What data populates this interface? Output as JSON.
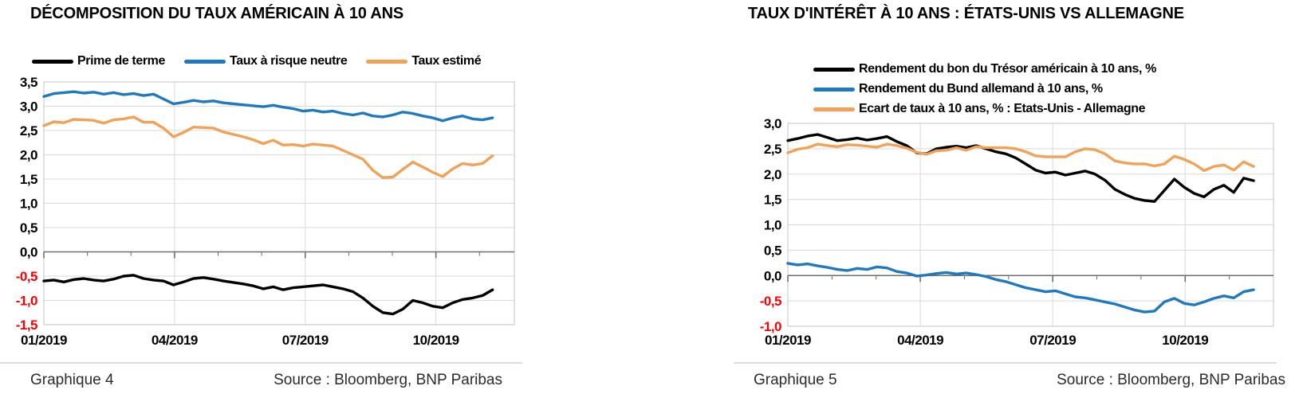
{
  "chart_data": [
    {
      "type": "line",
      "title": "DÉCOMPOSITION DU TAUX AMÉRICAIN À 10 ANS",
      "caption": "Graphique 4",
      "source": "Source : Bloomberg, BNP Paribas",
      "legend_position": "top-horizontal",
      "grid": true,
      "ylim": [
        -1.5,
        3.5
      ],
      "x_axis": {
        "tick_labels": [
          "01/2019",
          "04/2019",
          "07/2019",
          "10/2019"
        ],
        "tick_months": [
          0,
          3,
          6,
          9
        ],
        "gridline_months": [
          3,
          6,
          9
        ],
        "minor_tick_months": [
          0,
          1,
          2,
          3,
          4,
          5,
          6,
          7,
          8,
          9,
          10
        ],
        "months_max": 10.8,
        "data_months": 10.3
      },
      "y_axis": {
        "tick_labels": [
          "3,5",
          "3,0",
          "2,5",
          "2,0",
          "1,5",
          "1,0",
          "0,5",
          "0,0",
          "-0,5",
          "-1,0",
          "-1,5"
        ],
        "tick_values": [
          3.5,
          3.0,
          2.5,
          2.0,
          1.5,
          1.0,
          0.5,
          0.0,
          -0.5,
          -1.0,
          -1.5
        ],
        "negative_label_color": "#ff0000"
      },
      "series": [
        {
          "name": "Prime de terme",
          "color": "#000000",
          "values": [
            -0.6,
            -0.58,
            -0.62,
            -0.57,
            -0.55,
            -0.58,
            -0.6,
            -0.56,
            -0.5,
            -0.48,
            -0.55,
            -0.58,
            -0.6,
            -0.68,
            -0.62,
            -0.55,
            -0.53,
            -0.56,
            -0.6,
            -0.63,
            -0.66,
            -0.7,
            -0.76,
            -0.72,
            -0.78,
            -0.74,
            -0.72,
            -0.7,
            -0.68,
            -0.72,
            -0.76,
            -0.82,
            -0.95,
            -1.12,
            -1.25,
            -1.28,
            -1.18,
            -1.0,
            -1.05,
            -1.12,
            -1.15,
            -1.05,
            -0.98,
            -0.95,
            -0.9,
            -0.78
          ]
        },
        {
          "name": "Taux à risque neutre",
          "color": "#1e78c2",
          "values": [
            3.2,
            3.26,
            3.28,
            3.3,
            3.27,
            3.29,
            3.25,
            3.28,
            3.24,
            3.26,
            3.22,
            3.25,
            3.15,
            3.05,
            3.08,
            3.12,
            3.09,
            3.11,
            3.07,
            3.05,
            3.03,
            3.01,
            2.99,
            3.02,
            2.98,
            2.95,
            2.9,
            2.92,
            2.88,
            2.9,
            2.85,
            2.82,
            2.86,
            2.8,
            2.78,
            2.82,
            2.88,
            2.85,
            2.8,
            2.76,
            2.7,
            2.76,
            2.8,
            2.74,
            2.72,
            2.76
          ]
        },
        {
          "name": "Taux estimé",
          "color": "#f2a155",
          "values": [
            2.6,
            2.68,
            2.66,
            2.73,
            2.72,
            2.71,
            2.65,
            2.72,
            2.74,
            2.78,
            2.67,
            2.67,
            2.55,
            2.37,
            2.46,
            2.57,
            2.56,
            2.55,
            2.47,
            2.42,
            2.37,
            2.31,
            2.23,
            2.3,
            2.2,
            2.21,
            2.18,
            2.22,
            2.2,
            2.18,
            2.09,
            2.0,
            1.91,
            1.68,
            1.53,
            1.54,
            1.7,
            1.85,
            1.75,
            1.64,
            1.55,
            1.71,
            1.82,
            1.79,
            1.82,
            1.98
          ]
        }
      ]
    },
    {
      "type": "line",
      "title": "TAUX D'INTÉRÊT À 10 ANS : ÉTATS-UNIS VS ALLEMAGNE",
      "caption": "Graphique 5",
      "source": "Source : Bloomberg, BNP Paribas",
      "legend_position": "top-vertical",
      "grid": true,
      "ylim": [
        -1.0,
        3.0
      ],
      "x_axis": {
        "tick_labels": [
          "01/2019",
          "04/2019",
          "07/2019",
          "10/2019"
        ],
        "tick_months": [
          0,
          3,
          6,
          9
        ],
        "gridline_months": [
          3,
          6,
          9
        ],
        "minor_tick_months": [
          0,
          1,
          2,
          3,
          4,
          5,
          6,
          7,
          8,
          9,
          10
        ],
        "months_max": 11.0,
        "data_months": 10.55
      },
      "y_axis": {
        "tick_labels": [
          "3,0",
          "2,5",
          "2,0",
          "1,5",
          "1,0",
          "0,5",
          "0,0",
          "-0,5",
          "-1,0"
        ],
        "tick_values": [
          3.0,
          2.5,
          2.0,
          1.5,
          1.0,
          0.5,
          0.0,
          -0.5,
          -1.0
        ],
        "negative_label_color": "#ff0000"
      },
      "series": [
        {
          "name": "Rendement du bon du Trésor américain à 10 ans, %",
          "color": "#000000",
          "values": [
            2.66,
            2.7,
            2.75,
            2.78,
            2.72,
            2.66,
            2.68,
            2.71,
            2.67,
            2.7,
            2.74,
            2.64,
            2.56,
            2.42,
            2.4,
            2.5,
            2.53,
            2.55,
            2.52,
            2.56,
            2.5,
            2.44,
            2.4,
            2.32,
            2.2,
            2.08,
            2.02,
            2.04,
            1.98,
            2.02,
            2.06,
            2.0,
            1.88,
            1.7,
            1.6,
            1.52,
            1.48,
            1.46,
            1.68,
            1.9,
            1.74,
            1.62,
            1.55,
            1.7,
            1.78,
            1.64,
            1.92,
            1.87
          ]
        },
        {
          "name": "Rendement du Bund allemand à 10 ans, %",
          "color": "#1e78c2",
          "values": [
            0.24,
            0.21,
            0.23,
            0.19,
            0.16,
            0.12,
            0.1,
            0.14,
            0.12,
            0.17,
            0.15,
            0.08,
            0.05,
            -0.01,
            0.01,
            0.04,
            0.06,
            0.03,
            0.05,
            0.02,
            -0.02,
            -0.08,
            -0.12,
            -0.18,
            -0.24,
            -0.28,
            -0.32,
            -0.3,
            -0.36,
            -0.42,
            -0.44,
            -0.48,
            -0.52,
            -0.56,
            -0.62,
            -0.68,
            -0.72,
            -0.7,
            -0.52,
            -0.45,
            -0.55,
            -0.58,
            -0.52,
            -0.45,
            -0.4,
            -0.44,
            -0.32,
            -0.28
          ]
        },
        {
          "name": "Ecart de taux à 10 ans, % : Etats-Unis - Allemagne",
          "color": "#f2a155",
          "values": [
            2.42,
            2.49,
            2.52,
            2.59,
            2.56,
            2.54,
            2.58,
            2.57,
            2.55,
            2.53,
            2.59,
            2.56,
            2.51,
            2.43,
            2.39,
            2.46,
            2.47,
            2.52,
            2.47,
            2.54,
            2.52,
            2.52,
            2.52,
            2.5,
            2.44,
            2.36,
            2.34,
            2.34,
            2.34,
            2.44,
            2.5,
            2.48,
            2.4,
            2.26,
            2.22,
            2.2,
            2.2,
            2.16,
            2.2,
            2.35,
            2.29,
            2.2,
            2.07,
            2.15,
            2.18,
            2.08,
            2.24,
            2.15
          ]
        }
      ]
    }
  ],
  "styles": {
    "gridline_color": "#d9d9d9",
    "frame_color": "#c3c3c3",
    "zero_axis_color": "#6e6e6e"
  }
}
